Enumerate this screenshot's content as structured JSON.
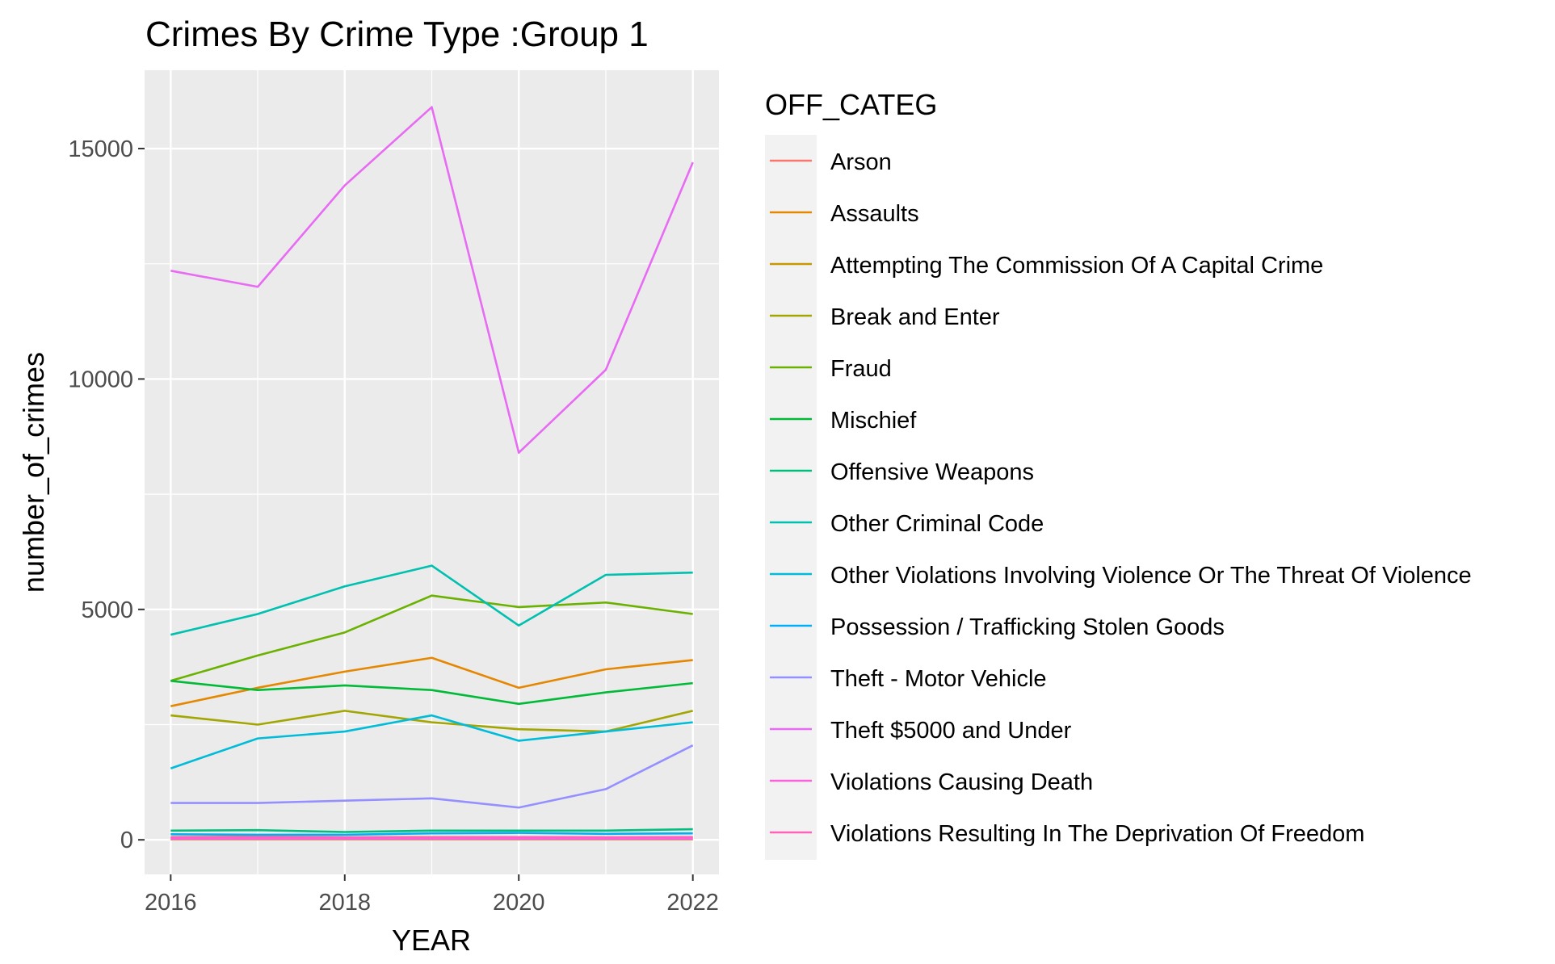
{
  "chart_data": {
    "type": "line",
    "title": "Crimes By Crime Type :Group 1",
    "xlabel": "YEAR",
    "ylabel": "number_of_crimes",
    "legend_title": "OFF_CATEG",
    "legend_position": "right",
    "grid": true,
    "xlim": [
      2015.7,
      2022.3
    ],
    "ylim": [
      -750,
      16700
    ],
    "x_ticks": [
      2016,
      2018,
      2020,
      2022
    ],
    "y_ticks": [
      0,
      5000,
      10000,
      15000
    ],
    "x_minor": [
      2017,
      2019,
      2021
    ],
    "y_minor": [
      2500,
      7500,
      12500
    ],
    "x": [
      2016,
      2017,
      2018,
      2019,
      2020,
      2021,
      2022
    ],
    "series": [
      {
        "name": "Arson",
        "color": "#F8766D",
        "values": [
          60,
          70,
          55,
          60,
          60,
          50,
          55
        ]
      },
      {
        "name": "Assaults",
        "color": "#E58700",
        "values": [
          2900,
          3300,
          3650,
          3950,
          3300,
          3700,
          3900
        ]
      },
      {
        "name": "Attempting The Commission Of A Capital Crime",
        "color": "#C99800",
        "values": [
          10,
          10,
          10,
          10,
          10,
          10,
          10
        ]
      },
      {
        "name": "Break and Enter",
        "color": "#A3A500",
        "values": [
          2700,
          2500,
          2800,
          2550,
          2400,
          2350,
          2800
        ]
      },
      {
        "name": "Fraud",
        "color": "#6BB100",
        "values": [
          3450,
          4000,
          4500,
          5300,
          5050,
          5150,
          4900
        ]
      },
      {
        "name": "Mischief",
        "color": "#00BA38",
        "values": [
          3450,
          3250,
          3350,
          3250,
          2950,
          3200,
          3400
        ]
      },
      {
        "name": "Offensive Weapons",
        "color": "#00BF7D",
        "values": [
          200,
          210,
          170,
          200,
          200,
          200,
          230
        ]
      },
      {
        "name": "Other Criminal Code",
        "color": "#00C0AF",
        "values": [
          4450,
          4900,
          5500,
          5950,
          4650,
          5750,
          5800
        ]
      },
      {
        "name": "Other Violations Involving Violence Or The Threat Of Violence",
        "color": "#00BCD8",
        "values": [
          1550,
          2200,
          2350,
          2700,
          2150,
          2350,
          2550
        ]
      },
      {
        "name": "Possession / Trafficking Stolen Goods",
        "color": "#00B0F6",
        "values": [
          120,
          110,
          110,
          140,
          150,
          130,
          140
        ]
      },
      {
        "name": "Theft - Motor Vehicle",
        "color": "#9590FF",
        "values": [
          800,
          800,
          850,
          900,
          700,
          1100,
          2050
        ]
      },
      {
        "name": "Theft $5000 and Under",
        "color": "#E76BF3",
        "values": [
          12350,
          12000,
          14200,
          15900,
          8400,
          10200,
          14700
        ]
      },
      {
        "name": "Violations Causing Death",
        "color": "#FA62DB",
        "values": [
          20,
          20,
          20,
          20,
          20,
          20,
          20
        ]
      },
      {
        "name": "Violations Resulting In The Deprivation Of Freedom",
        "color": "#FF62BC",
        "values": [
          50,
          55,
          50,
          50,
          60,
          55,
          60
        ]
      }
    ]
  }
}
